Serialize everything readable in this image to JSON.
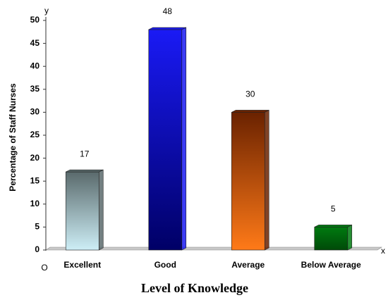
{
  "chart_data": {
    "type": "bar3d",
    "categories": [
      "Excellent",
      "Good",
      "Average",
      "Below Average"
    ],
    "values": [
      17,
      48,
      30,
      5
    ],
    "colors": [
      [
        "#5a6a6c",
        "#cdeef6"
      ],
      [
        "#1a1af5",
        "#000066"
      ],
      [
        "#6a2200",
        "#ff7a18"
      ],
      [
        "#007a10",
        "#004a08"
      ]
    ],
    "ylim": [
      0,
      50
    ],
    "yticks": [
      0,
      5,
      10,
      15,
      20,
      25,
      30,
      35,
      40,
      45,
      50
    ],
    "ylabel": "Percentage of Staff Nurses",
    "xlabel": "Level of Knowledge",
    "y_axis_letter": "y",
    "x_axis_letter": "x",
    "origin_label": "O"
  }
}
